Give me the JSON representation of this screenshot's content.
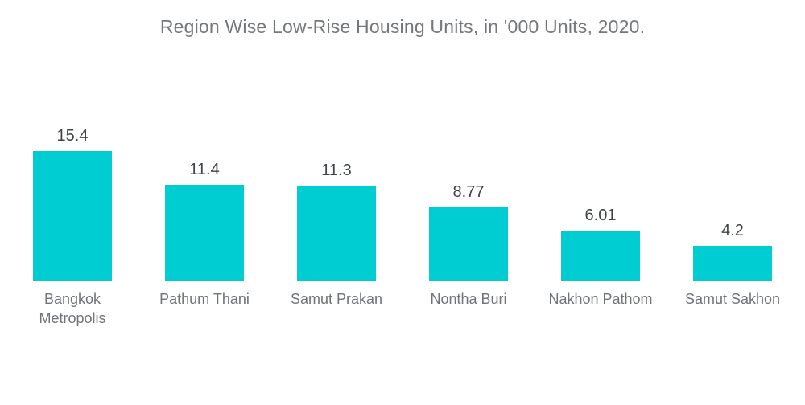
{
  "chart_data": {
    "type": "bar",
    "title": "Region Wise Low-Rise Housing Units, in '000 Units, 2020.",
    "categories": [
      "Bangkok Metropolis",
      "Pathum Thani",
      "Samut Prakan",
      "Nontha Buri",
      "Nakhon Pathom",
      "Samut Sakhon"
    ],
    "values": [
      15.4,
      11.4,
      11.3,
      8.77,
      6.01,
      4.2
    ],
    "value_labels": [
      "15.4",
      "11.4",
      "11.3",
      "8.77",
      "6.01",
      "4.2"
    ],
    "xlabel": "",
    "ylabel": "",
    "ylim": [
      0,
      15.4
    ],
    "grid": false,
    "legend": false,
    "axes_visible": false,
    "value_labels_position": "above-bars",
    "colors": {
      "bar": "#00CDD1",
      "title": "#75787B",
      "value_label": "#3F4447",
      "category_label": "#6F7478",
      "background": "#FFFFFF"
    }
  }
}
